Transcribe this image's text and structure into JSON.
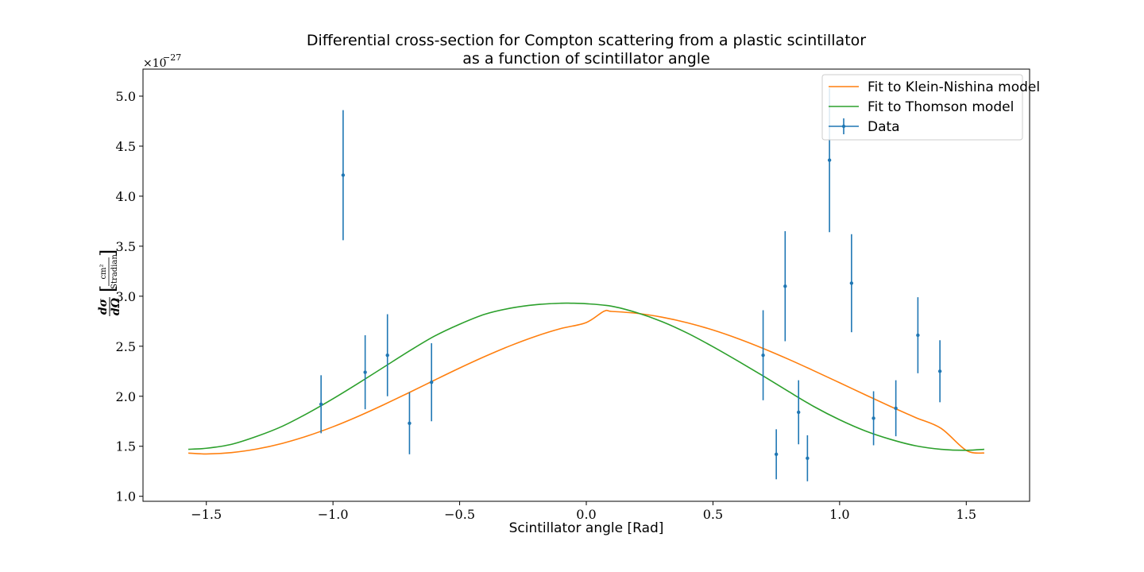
{
  "chart_data": {
    "type": "scatter",
    "title_lines": [
      "Differential cross-section for Compton scattering from a plastic scintillator",
      "as a function of scintillator angle"
    ],
    "xlabel": "Scintillator angle [Rad]",
    "ylabel": "dσ/dΩ [cm²/Stradian]",
    "ylabel_parts": {
      "numerator": "dσ",
      "denominator": "dΩ",
      "unit_numerator": "cm²",
      "unit_denominator": "Stradian"
    },
    "y_scale_label": "×10⁻²⁷",
    "y_scale_parts": {
      "base": "×10",
      "exponent": "−27"
    },
    "xlim": [
      -1.75,
      1.75
    ],
    "ylim": [
      0.95,
      5.27
    ],
    "xticks": [
      -1.5,
      -1.0,
      -0.5,
      0.0,
      0.5,
      1.0,
      1.5
    ],
    "xtick_labels": [
      "−1.5",
      "−1.0",
      "−0.5",
      "0.0",
      "0.5",
      "1.0",
      "1.5"
    ],
    "yticks": [
      1.0,
      1.5,
      2.0,
      2.5,
      3.0,
      3.5,
      4.0,
      4.5,
      5.0
    ],
    "ytick_labels": [
      "1.0",
      "1.5",
      "2.0",
      "2.5",
      "3.0",
      "3.5",
      "4.0",
      "4.5",
      "5.0"
    ],
    "grid": false,
    "legend_position": "top-right",
    "series": [
      {
        "name": "Fit to Klein-Nishina model",
        "kind": "line",
        "color": "#ff7f0e",
        "x": [
          -1.571,
          -1.5,
          -1.4,
          -1.3,
          -1.2,
          -1.1,
          -1.0,
          -0.9,
          -0.8,
          -0.7,
          -0.6,
          -0.5,
          -0.4,
          -0.3,
          -0.2,
          -0.1,
          0.0,
          0.07,
          0.1,
          0.2,
          0.3,
          0.4,
          0.5,
          0.6,
          0.7,
          0.8,
          0.9,
          1.0,
          1.1,
          1.2,
          1.3,
          1.4,
          1.5,
          1.571
        ],
        "y": [
          1.432,
          1.423,
          1.437,
          1.473,
          1.529,
          1.604,
          1.695,
          1.8,
          1.915,
          2.036,
          2.16,
          2.282,
          2.398,
          2.505,
          2.599,
          2.677,
          2.737,
          2.85,
          2.848,
          2.829,
          2.79,
          2.734,
          2.662,
          2.575,
          2.476,
          2.368,
          2.253,
          2.135,
          2.016,
          1.899,
          1.787,
          1.68,
          1.459,
          1.432
        ]
      },
      {
        "name": "Fit to Thomson model",
        "kind": "line",
        "color": "#2ca02c",
        "x": [
          -1.571,
          -1.5,
          -1.4,
          -1.3,
          -1.2,
          -1.1,
          -1.0,
          -0.9,
          -0.8,
          -0.7,
          -0.6,
          -0.5,
          -0.4,
          -0.3,
          -0.2,
          -0.1,
          -0.06,
          0.0,
          0.1,
          0.2,
          0.3,
          0.4,
          0.5,
          0.6,
          0.7,
          0.8,
          0.9,
          1.0,
          1.1,
          1.2,
          1.3,
          1.4,
          1.5,
          1.571
        ],
        "y": [
          1.47,
          1.48,
          1.52,
          1.6,
          1.7,
          1.83,
          1.975,
          2.13,
          2.29,
          2.45,
          2.6,
          2.72,
          2.82,
          2.88,
          2.915,
          2.93,
          2.93,
          2.925,
          2.9,
          2.835,
          2.745,
          2.63,
          2.495,
          2.35,
          2.2,
          2.045,
          1.895,
          1.765,
          1.655,
          1.57,
          1.505,
          1.47,
          1.46,
          1.47
        ]
      },
      {
        "name": "Data",
        "kind": "errorbar",
        "color": "#1f77b4",
        "x": [
          -1.047,
          -0.96,
          -0.873,
          -0.785,
          -0.698,
          -0.611,
          0.698,
          0.75,
          0.785,
          0.838,
          0.873,
          0.96,
          1.047,
          1.134,
          1.222,
          1.309,
          1.396
        ],
        "y": [
          1.92,
          4.21,
          2.24,
          2.41,
          1.73,
          2.14,
          2.41,
          1.42,
          3.1,
          1.84,
          1.38,
          4.36,
          3.13,
          1.78,
          1.88,
          2.61,
          2.25
        ],
        "yerr": [
          0.29,
          0.65,
          0.37,
          0.41,
          0.31,
          0.39,
          0.45,
          0.25,
          0.55,
          0.32,
          0.23,
          0.72,
          0.49,
          0.27,
          0.28,
          0.38,
          0.31
        ]
      }
    ]
  }
}
